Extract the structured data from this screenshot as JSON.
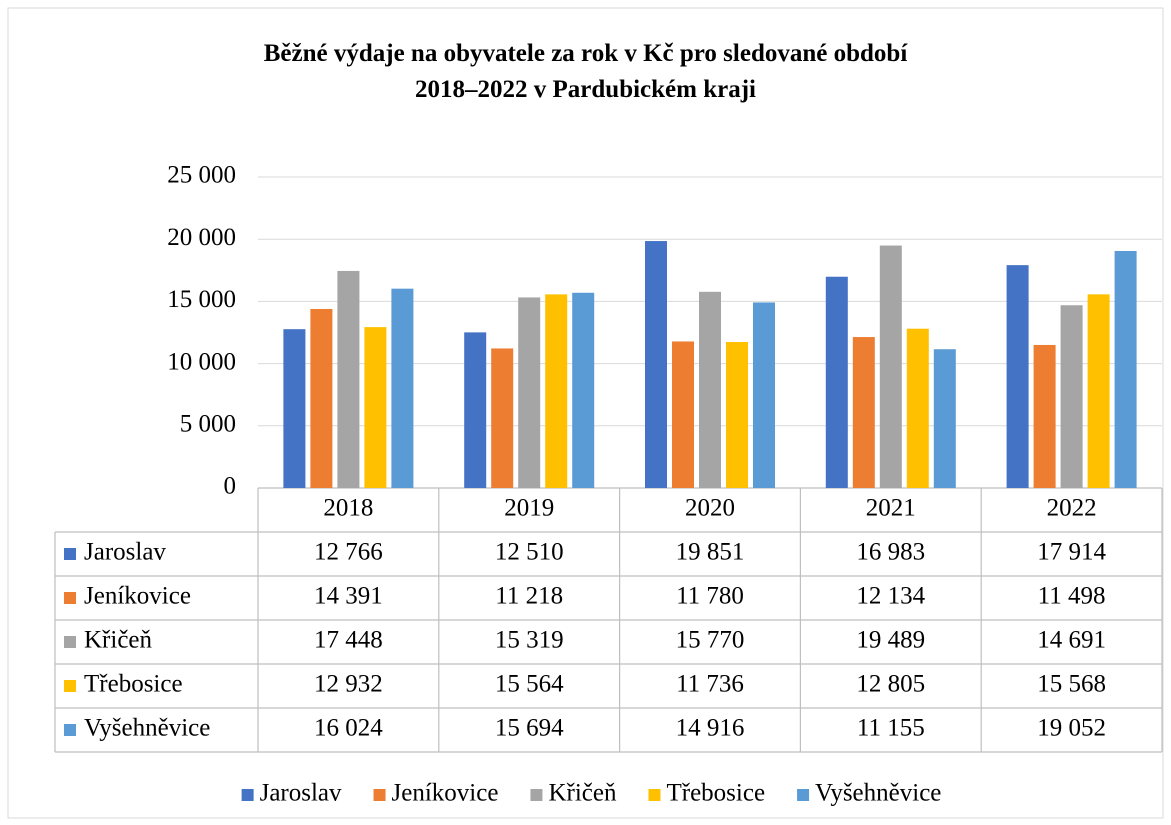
{
  "chart_data": {
    "type": "bar",
    "title": "Běžné výdaje na obyvatele za rok v Kč pro sledované období\n2018–2022 v Pardubickém kraji",
    "categories": [
      "2018",
      "2019",
      "2020",
      "2021",
      "2022"
    ],
    "series": [
      {
        "name": "Jaroslav",
        "color": "#4472c4",
        "values": [
          12766,
          12510,
          19851,
          16983,
          17914
        ],
        "value_labels": [
          "12 766",
          "12 510",
          "19 851",
          "16 983",
          "17 914"
        ]
      },
      {
        "name": "Jeníkovice",
        "color": "#ed7d31",
        "values": [
          14391,
          11218,
          11780,
          12134,
          11498
        ],
        "value_labels": [
          "14 391",
          "11 218",
          "11 780",
          "12 134",
          "11 498"
        ]
      },
      {
        "name": "Křičeň",
        "color": "#a5a5a5",
        "values": [
          17448,
          15319,
          15770,
          19489,
          14691
        ],
        "value_labels": [
          "17 448",
          "15 319",
          "15 770",
          "19 489",
          "14 691"
        ]
      },
      {
        "name": "Třebosice",
        "color": "#ffc000",
        "values": [
          12932,
          15564,
          11736,
          12805,
          15568
        ],
        "value_labels": [
          "12 932",
          "15 564",
          "11 736",
          "12 805",
          "15 568"
        ]
      },
      {
        "name": "Vyšehněvice",
        "color": "#5b9bd5",
        "values": [
          16024,
          15694,
          14916,
          11155,
          19052
        ],
        "value_labels": [
          "16 024",
          "15 694",
          "14 916",
          "11 155",
          "19 052"
        ]
      }
    ],
    "ylim": [
      0,
      25000
    ],
    "yticks": [
      0,
      {
        "value": 5000,
        "label": "5 000"
      },
      {
        "value": 10000,
        "label": "10 000"
      },
      {
        "value": 15000,
        "label": "15 000"
      },
      {
        "value": 20000,
        "label": "20 000"
      },
      {
        "value": 25000,
        "label": "25 000"
      }
    ],
    "grid": true,
    "legend": "bottom"
  }
}
